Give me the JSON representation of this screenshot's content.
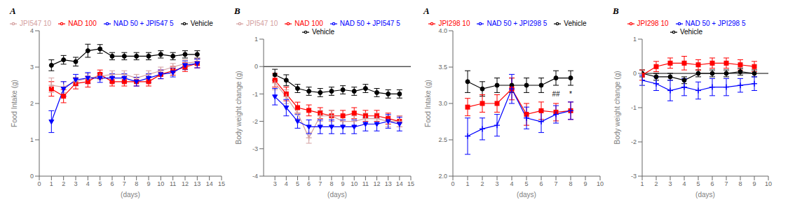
{
  "chart_data": [
    {
      "type": "line",
      "title": "A",
      "x_label": "(days)",
      "y_label": "Food Intake (g)",
      "xlim": [
        0,
        15
      ],
      "ylim": [
        0,
        4
      ],
      "xticks": [
        0,
        1,
        2,
        3,
        4,
        5,
        6,
        7,
        8,
        9,
        10,
        11,
        12,
        13,
        14,
        15
      ],
      "yticks": [
        0,
        1,
        2,
        3,
        4
      ],
      "series": [
        {
          "name": "Vehicle",
          "color": "#000000",
          "marker": "circle",
          "x": [
            1,
            2,
            3,
            4,
            5,
            6,
            7,
            8,
            9,
            10,
            11,
            12,
            13
          ],
          "values": [
            3.05,
            3.2,
            3.15,
            3.45,
            3.5,
            3.3,
            3.3,
            3.3,
            3.3,
            3.35,
            3.3,
            3.35,
            3.35
          ],
          "errors": [
            0.15,
            0.12,
            0.12,
            0.18,
            0.12,
            0.1,
            0.1,
            0.1,
            0.1,
            0.1,
            0.1,
            0.1,
            0.1
          ]
        },
        {
          "name": "NAD 100",
          "color": "#ff0000",
          "marker": "square",
          "x": [
            1,
            2,
            3,
            4,
            5,
            6,
            7,
            8,
            9,
            10,
            11,
            12,
            13
          ],
          "values": [
            2.4,
            2.2,
            2.55,
            2.6,
            2.8,
            2.6,
            2.6,
            2.6,
            2.6,
            2.8,
            2.9,
            3.0,
            3.1
          ],
          "errors": [
            0.2,
            0.18,
            0.15,
            0.15,
            0.12,
            0.12,
            0.12,
            0.12,
            0.12,
            0.12,
            0.12,
            0.12,
            0.12
          ]
        },
        {
          "name": "JPI547 10",
          "color": "#d4a0a0",
          "marker": "plus",
          "x": [
            1,
            2,
            3,
            4,
            5,
            6,
            7,
            8,
            9,
            10,
            11,
            12,
            13
          ],
          "values": [
            2.5,
            2.45,
            2.6,
            2.7,
            2.75,
            2.8,
            2.8,
            2.7,
            2.8,
            2.9,
            3.0,
            3.1,
            3.15
          ],
          "errors": [
            0.2,
            0.15,
            0.12,
            0.12,
            0.1,
            0.1,
            0.1,
            0.1,
            0.1,
            0.1,
            0.1,
            0.1,
            0.1
          ]
        },
        {
          "name": "NAD 50 + JPI547 5",
          "color": "#0000ff",
          "marker": "triangle_down",
          "x": [
            1,
            2,
            3,
            4,
            5,
            6,
            7,
            8,
            9,
            10,
            11,
            12,
            13
          ],
          "values": [
            1.5,
            2.4,
            2.65,
            2.7,
            2.7,
            2.7,
            2.7,
            2.6,
            2.7,
            2.8,
            2.85,
            3.05,
            3.1
          ],
          "errors": [
            0.3,
            0.2,
            0.15,
            0.15,
            0.12,
            0.12,
            0.12,
            0.12,
            0.12,
            0.12,
            0.12,
            0.12,
            0.12
          ]
        }
      ]
    },
    {
      "type": "line",
      "title": "B",
      "x_label": "(days)",
      "y_label": "Body weight change (g)",
      "xlim": [
        2,
        15
      ],
      "ylim": [
        -4,
        1
      ],
      "xticks": [
        3,
        4,
        5,
        6,
        7,
        8,
        9,
        10,
        11,
        12,
        13,
        14,
        15
      ],
      "yticks": [
        -4,
        -3,
        -2,
        -1,
        0,
        1
      ],
      "reference_lines": [
        0
      ],
      "series": [
        {
          "name": "Vehicle",
          "color": "#000000",
          "marker": "circle",
          "x": [
            3,
            4,
            5,
            6,
            7,
            8,
            9,
            10,
            11,
            12,
            13,
            14
          ],
          "values": [
            -0.3,
            -0.5,
            -0.8,
            -0.9,
            -0.95,
            -0.9,
            -0.85,
            -0.9,
            -0.8,
            -0.95,
            -1.0,
            -1.0
          ],
          "errors": [
            0.2,
            0.2,
            0.15,
            0.15,
            0.15,
            0.15,
            0.15,
            0.15,
            0.15,
            0.15,
            0.15,
            0.15
          ]
        },
        {
          "name": "NAD 100",
          "color": "#ff0000",
          "marker": "square",
          "x": [
            3,
            4,
            5,
            6,
            7,
            8,
            9,
            10,
            11,
            12,
            13,
            14
          ],
          "values": [
            -0.5,
            -1.0,
            -1.5,
            -1.6,
            -1.7,
            -1.8,
            -1.8,
            -1.7,
            -1.8,
            -1.8,
            -1.9,
            -2.0
          ],
          "errors": [
            0.25,
            0.25,
            0.2,
            0.2,
            0.2,
            0.2,
            0.2,
            0.2,
            0.2,
            0.2,
            0.2,
            0.2
          ]
        },
        {
          "name": "JPI547 10",
          "color": "#d4a0a0",
          "marker": "plus",
          "x": [
            3,
            4,
            5,
            6,
            7,
            8,
            9,
            10,
            11,
            12,
            13,
            14
          ],
          "values": [
            -0.6,
            -1.1,
            -1.7,
            -2.6,
            -1.8,
            -1.8,
            -2.0,
            -2.0,
            -1.9,
            -1.9,
            -2.0,
            -2.0
          ],
          "errors": [
            0.25,
            0.25,
            0.2,
            0.2,
            0.2,
            0.2,
            0.2,
            0.2,
            0.2,
            0.2,
            0.2,
            0.2
          ]
        },
        {
          "name": "NAD 50 + JPI547 5",
          "color": "#0000ff",
          "marker": "triangle_down",
          "x": [
            3,
            4,
            5,
            6,
            7,
            8,
            9,
            10,
            11,
            12,
            13,
            14
          ],
          "values": [
            -1.1,
            -1.5,
            -2.0,
            -2.2,
            -2.2,
            -2.2,
            -2.2,
            -2.2,
            -2.1,
            -2.1,
            -2.0,
            -2.1
          ],
          "errors": [
            0.3,
            0.3,
            0.25,
            0.25,
            0.25,
            0.25,
            0.25,
            0.25,
            0.25,
            0.25,
            0.25,
            0.25
          ]
        }
      ]
    },
    {
      "type": "line",
      "title": "A",
      "x_label": "(days)",
      "y_label": "Food Intake (g)",
      "xlim": [
        0,
        10
      ],
      "ylim": [
        2.0,
        4.0
      ],
      "xticks": [
        0,
        1,
        2,
        3,
        4,
        5,
        6,
        7,
        8,
        9,
        10
      ],
      "yticks": [
        {
          "value": 2.0,
          "label": "2.0"
        },
        2.5,
        {
          "value": 3.0,
          "label": "3.0"
        },
        3.5,
        {
          "value": 4.0,
          "label": "4.0"
        }
      ],
      "series": [
        {
          "name": "Vehicle",
          "color": "#000000",
          "marker": "circle",
          "x": [
            1,
            2,
            3,
            4,
            5,
            6,
            7,
            8
          ],
          "values": [
            3.3,
            3.2,
            3.25,
            3.25,
            3.25,
            3.25,
            3.35,
            3.35
          ],
          "errors": [
            0.15,
            0.1,
            0.1,
            0.1,
            0.1,
            0.1,
            0.1,
            0.1
          ]
        },
        {
          "name": "JPI298 10",
          "color": "#ff0000",
          "marker": "square",
          "x": [
            1,
            2,
            3,
            4,
            5,
            6,
            7,
            8
          ],
          "values": [
            2.95,
            3.0,
            3.0,
            3.2,
            2.85,
            2.9,
            2.88,
            2.9
          ],
          "errors": [
            0.12,
            0.12,
            0.12,
            0.15,
            0.15,
            0.12,
            0.12,
            0.12
          ]
        },
        {
          "name": "NAD 50 + JPI298 5",
          "color": "#0000ff",
          "marker": "plus",
          "x": [
            1,
            2,
            3,
            4,
            5,
            6,
            7,
            8
          ],
          "values": [
            2.55,
            2.65,
            2.7,
            3.2,
            2.8,
            2.75,
            2.85,
            2.9
          ],
          "errors": [
            0.25,
            0.15,
            0.15,
            0.2,
            0.15,
            0.15,
            0.12,
            0.12
          ]
        }
      ],
      "annotations": [
        {
          "x": 7,
          "y": 3.08,
          "text": "##"
        },
        {
          "x": 8,
          "y": 3.08,
          "text": "*"
        }
      ]
    },
    {
      "type": "line",
      "title": "B",
      "x_label": "(days)",
      "y_label": "Body weight change (g)",
      "xlim": [
        1,
        10
      ],
      "ylim": [
        -3,
        1
      ],
      "xticks": [
        1,
        2,
        3,
        4,
        5,
        6,
        7,
        8,
        9,
        10
      ],
      "yticks": [
        -3,
        -2,
        -1,
        0,
        1
      ],
      "reference_lines": [
        0
      ],
      "series": [
        {
          "name": "Vehicle",
          "color": "#000000",
          "marker": "circle",
          "x": [
            1,
            2,
            3,
            4,
            5,
            6,
            7,
            8,
            9
          ],
          "values": [
            0.0,
            -0.1,
            -0.1,
            -0.2,
            0.0,
            0.0,
            0.0,
            0.05,
            0.0
          ],
          "errors": [
            0.1,
            0.1,
            0.1,
            0.1,
            0.1,
            0.1,
            0.1,
            0.1,
            0.1
          ]
        },
        {
          "name": "JPI298 10",
          "color": "#ff0000",
          "marker": "square",
          "x": [
            1,
            2,
            3,
            4,
            5,
            6,
            7,
            8,
            9
          ],
          "values": [
            -0.05,
            0.2,
            0.3,
            0.3,
            0.25,
            0.3,
            0.3,
            0.25,
            0.2
          ],
          "errors": [
            0.15,
            0.15,
            0.15,
            0.2,
            0.15,
            0.15,
            0.15,
            0.15,
            0.15
          ]
        },
        {
          "name": "NAD 50 + JPI298 5",
          "color": "#0000ff",
          "marker": "plus",
          "x": [
            1,
            2,
            3,
            4,
            5,
            6,
            7,
            8,
            9
          ],
          "values": [
            -0.2,
            -0.3,
            -0.5,
            -0.4,
            -0.5,
            -0.4,
            -0.4,
            -0.35,
            -0.3
          ],
          "errors": [
            0.15,
            0.2,
            0.3,
            0.25,
            0.25,
            0.25,
            0.25,
            0.2,
            0.2
          ]
        }
      ]
    }
  ]
}
